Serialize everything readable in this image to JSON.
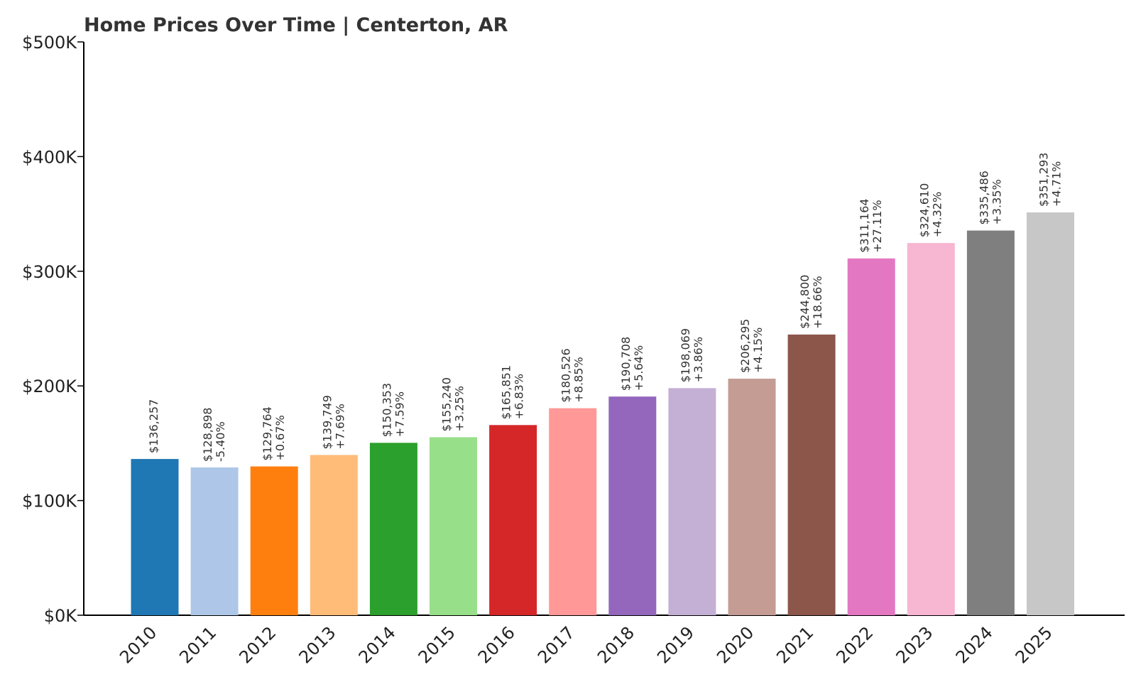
{
  "chart_data": {
    "type": "bar",
    "title": "Home Prices Over Time | Centerton, AR",
    "xlabel": "",
    "ylabel": "",
    "ylim": [
      0,
      500000
    ],
    "yticks": [
      0,
      100000,
      200000,
      300000,
      400000,
      500000
    ],
    "ytick_labels": [
      "$0K",
      "$100K",
      "$200K",
      "$300K",
      "$400K",
      "$500K"
    ],
    "grid": false,
    "legend": "none",
    "categories": [
      "2010",
      "2011",
      "2012",
      "2013",
      "2014",
      "2015",
      "2016",
      "2017",
      "2018",
      "2019",
      "2020",
      "2021",
      "2022",
      "2023",
      "2024",
      "2025"
    ],
    "values": [
      136257,
      128898,
      129764,
      139749,
      150353,
      155240,
      165851,
      180526,
      190708,
      198069,
      206295,
      244800,
      311164,
      324610,
      335486,
      351293
    ],
    "value_labels": [
      "$136,257",
      "$128,898",
      "$129,764",
      "$139,749",
      "$150,353",
      "$155,240",
      "$165,851",
      "$180,526",
      "$190,708",
      "$198,069",
      "$206,295",
      "$244,800",
      "$311,164",
      "$324,610",
      "$335,486",
      "$351,293"
    ],
    "change_labels": [
      "",
      "-5.40%",
      "+0.67%",
      "+7.69%",
      "+7.59%",
      "+3.25%",
      "+6.83%",
      "+8.85%",
      "+5.64%",
      "+3.86%",
      "+4.15%",
      "+18.66%",
      "+27.11%",
      "+4.32%",
      "+3.35%",
      "+4.71%"
    ],
    "colors": [
      "#1f77b4",
      "#aec7e8",
      "#ff7f0e",
      "#ffbb78",
      "#2ca02c",
      "#98df8a",
      "#d62728",
      "#ff9896",
      "#9467bd",
      "#c5b0d5",
      "#c49c94",
      "#8c564b",
      "#e377c2",
      "#f7b6d2",
      "#7f7f7f",
      "#c7c7c7"
    ]
  }
}
